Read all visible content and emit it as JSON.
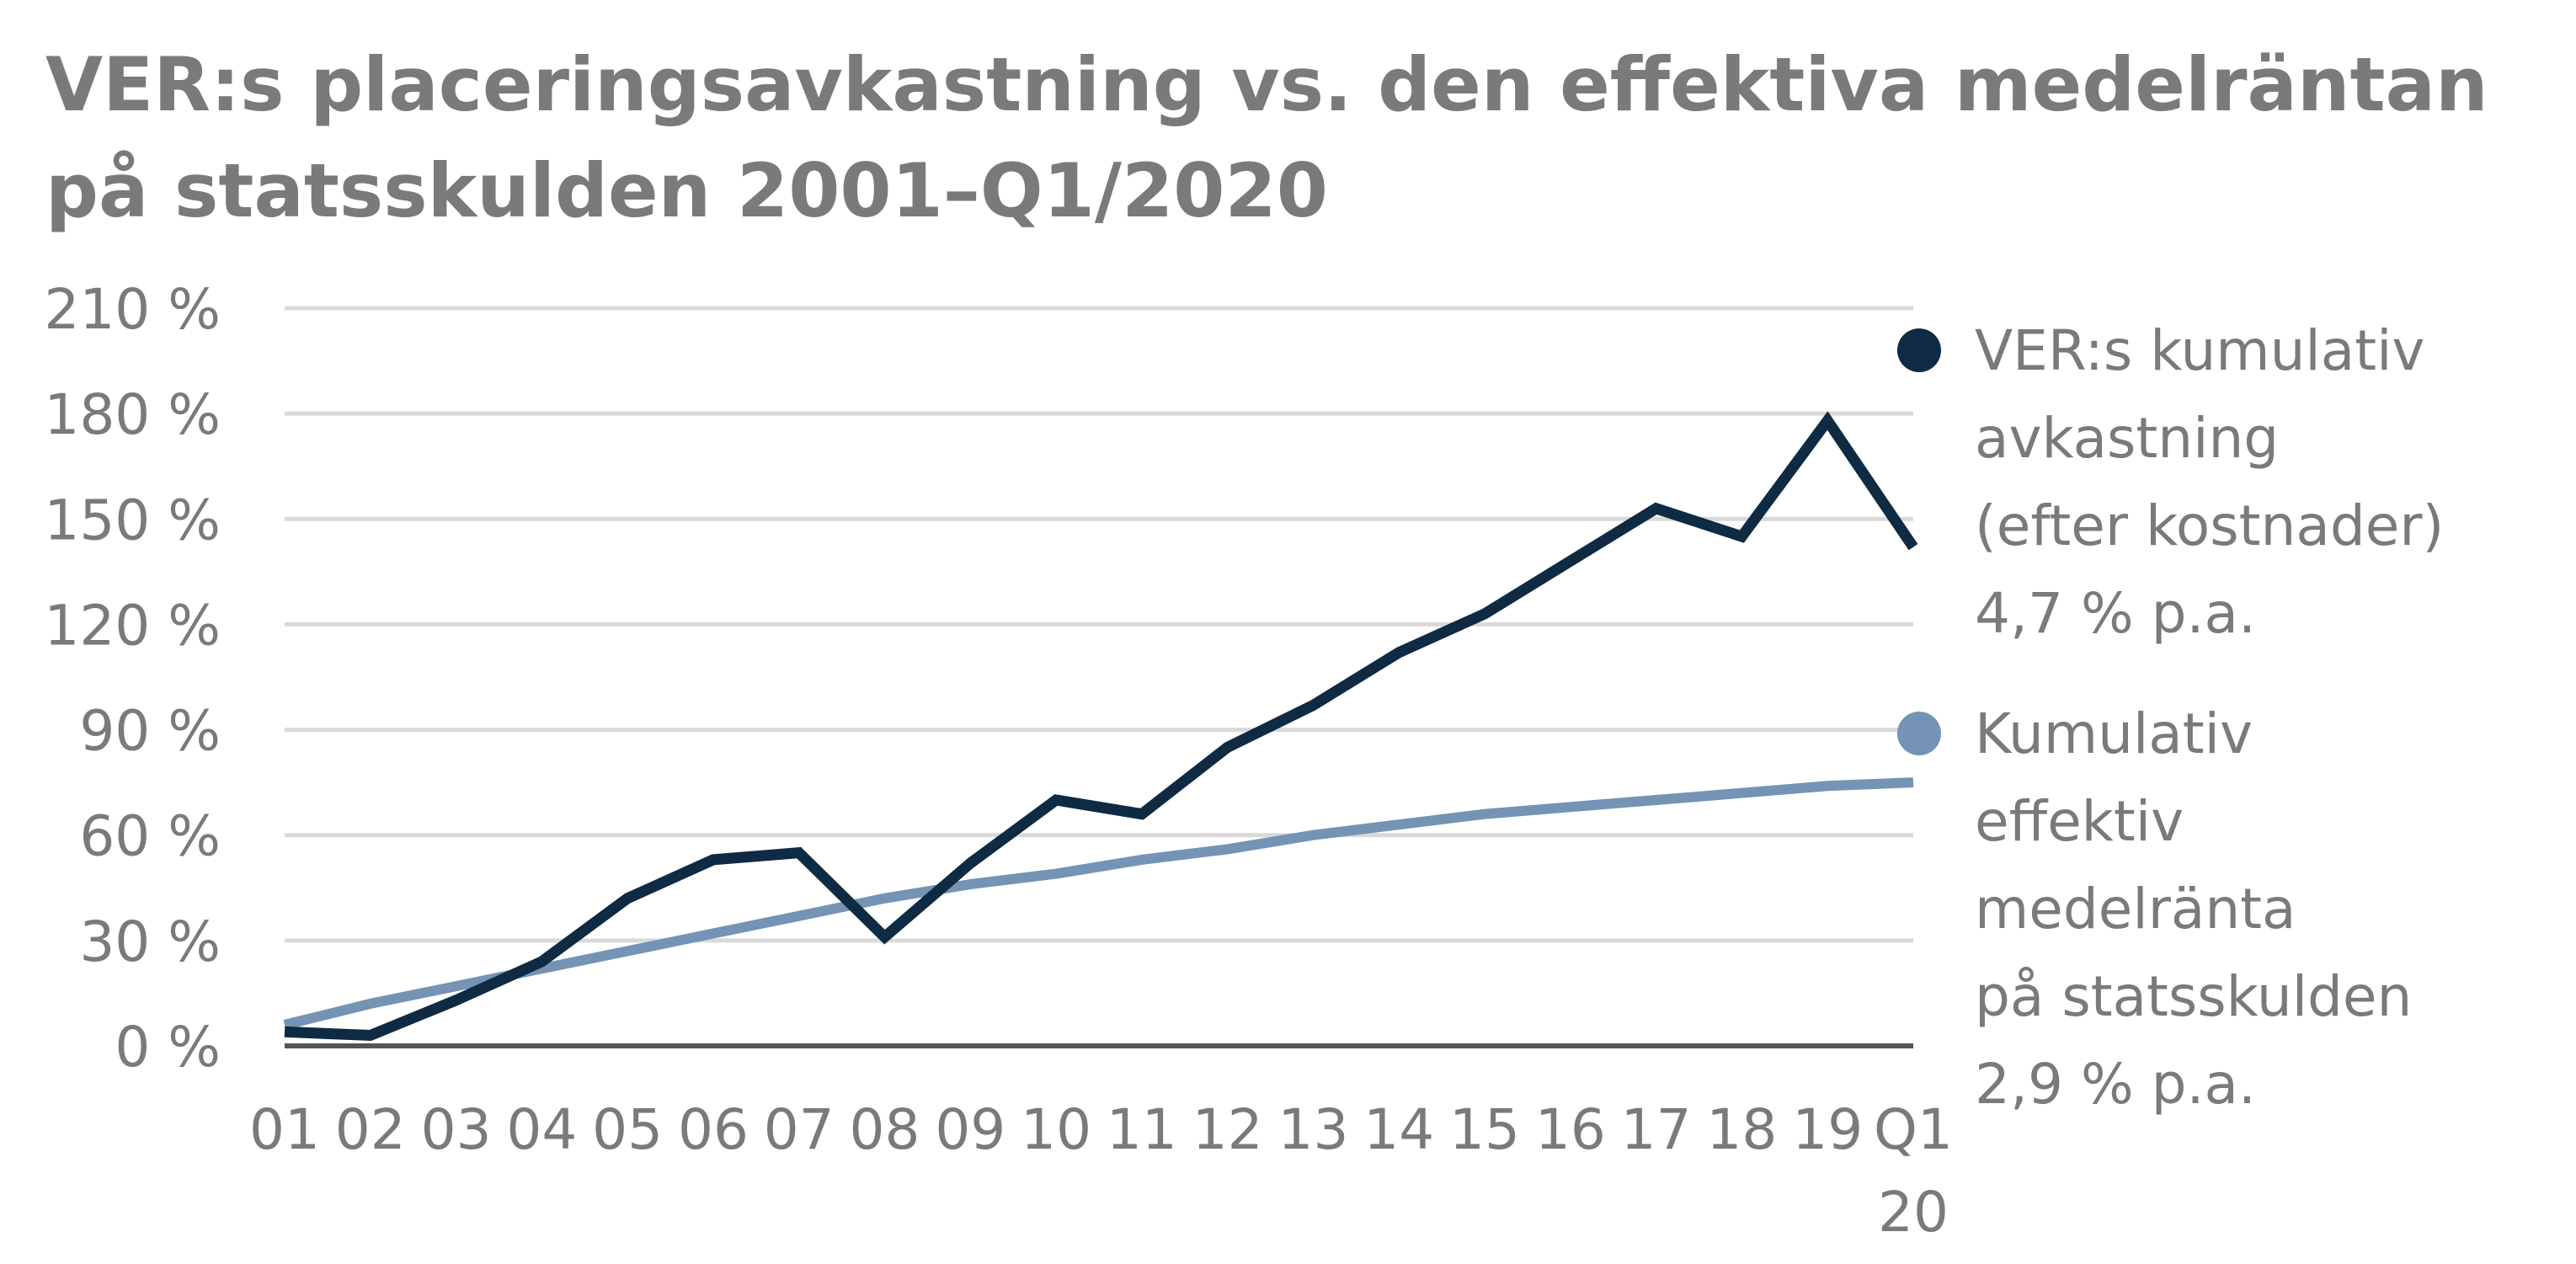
{
  "chart_data": {
    "type": "line",
    "title_lines": [
      "VER:s placeringsavkastning vs. den effektiva medelräntan",
      "på statsskulden 2001–Q1/2020"
    ],
    "x_labels": [
      [
        "01"
      ],
      [
        "02"
      ],
      [
        "03"
      ],
      [
        "04"
      ],
      [
        "05"
      ],
      [
        "06"
      ],
      [
        "07"
      ],
      [
        "08"
      ],
      [
        "09"
      ],
      [
        "10"
      ],
      [
        "11"
      ],
      [
        "12"
      ],
      [
        "13"
      ],
      [
        "14"
      ],
      [
        "15"
      ],
      [
        "16"
      ],
      [
        "17"
      ],
      [
        "18"
      ],
      [
        "19"
      ],
      [
        "Q1",
        "20"
      ]
    ],
    "y_ticks": [
      0,
      30,
      60,
      90,
      120,
      150,
      180,
      210
    ],
    "y_tick_labels": [
      "0 %",
      "30 %",
      "60 %",
      "90 %",
      "120 %",
      "150 %",
      "180 %",
      "210 %"
    ],
    "ylim": [
      0,
      210
    ],
    "grid": true,
    "legend_position": "right",
    "series": [
      {
        "legend_lines": [
          "VER:s kumulativ",
          "avkastning",
          "(efter kostnader)",
          "4,7 % p.a."
        ],
        "color": "#0f2a43",
        "values": [
          4,
          3,
          13,
          24,
          42,
          53,
          55,
          31,
          52,
          70,
          66,
          85,
          97,
          112,
          123,
          138,
          153,
          145,
          178,
          142
        ]
      },
      {
        "legend_lines": [
          "Kumulativ",
          "effektiv",
          "medelränta",
          "på statsskulden",
          "2,9 % p.a."
        ],
        "color": "#7593b4",
        "values": [
          6,
          12,
          17,
          22,
          27,
          32,
          37,
          42,
          46,
          49,
          53,
          56,
          60,
          63,
          66,
          68,
          70,
          72,
          74,
          75
        ]
      }
    ]
  }
}
